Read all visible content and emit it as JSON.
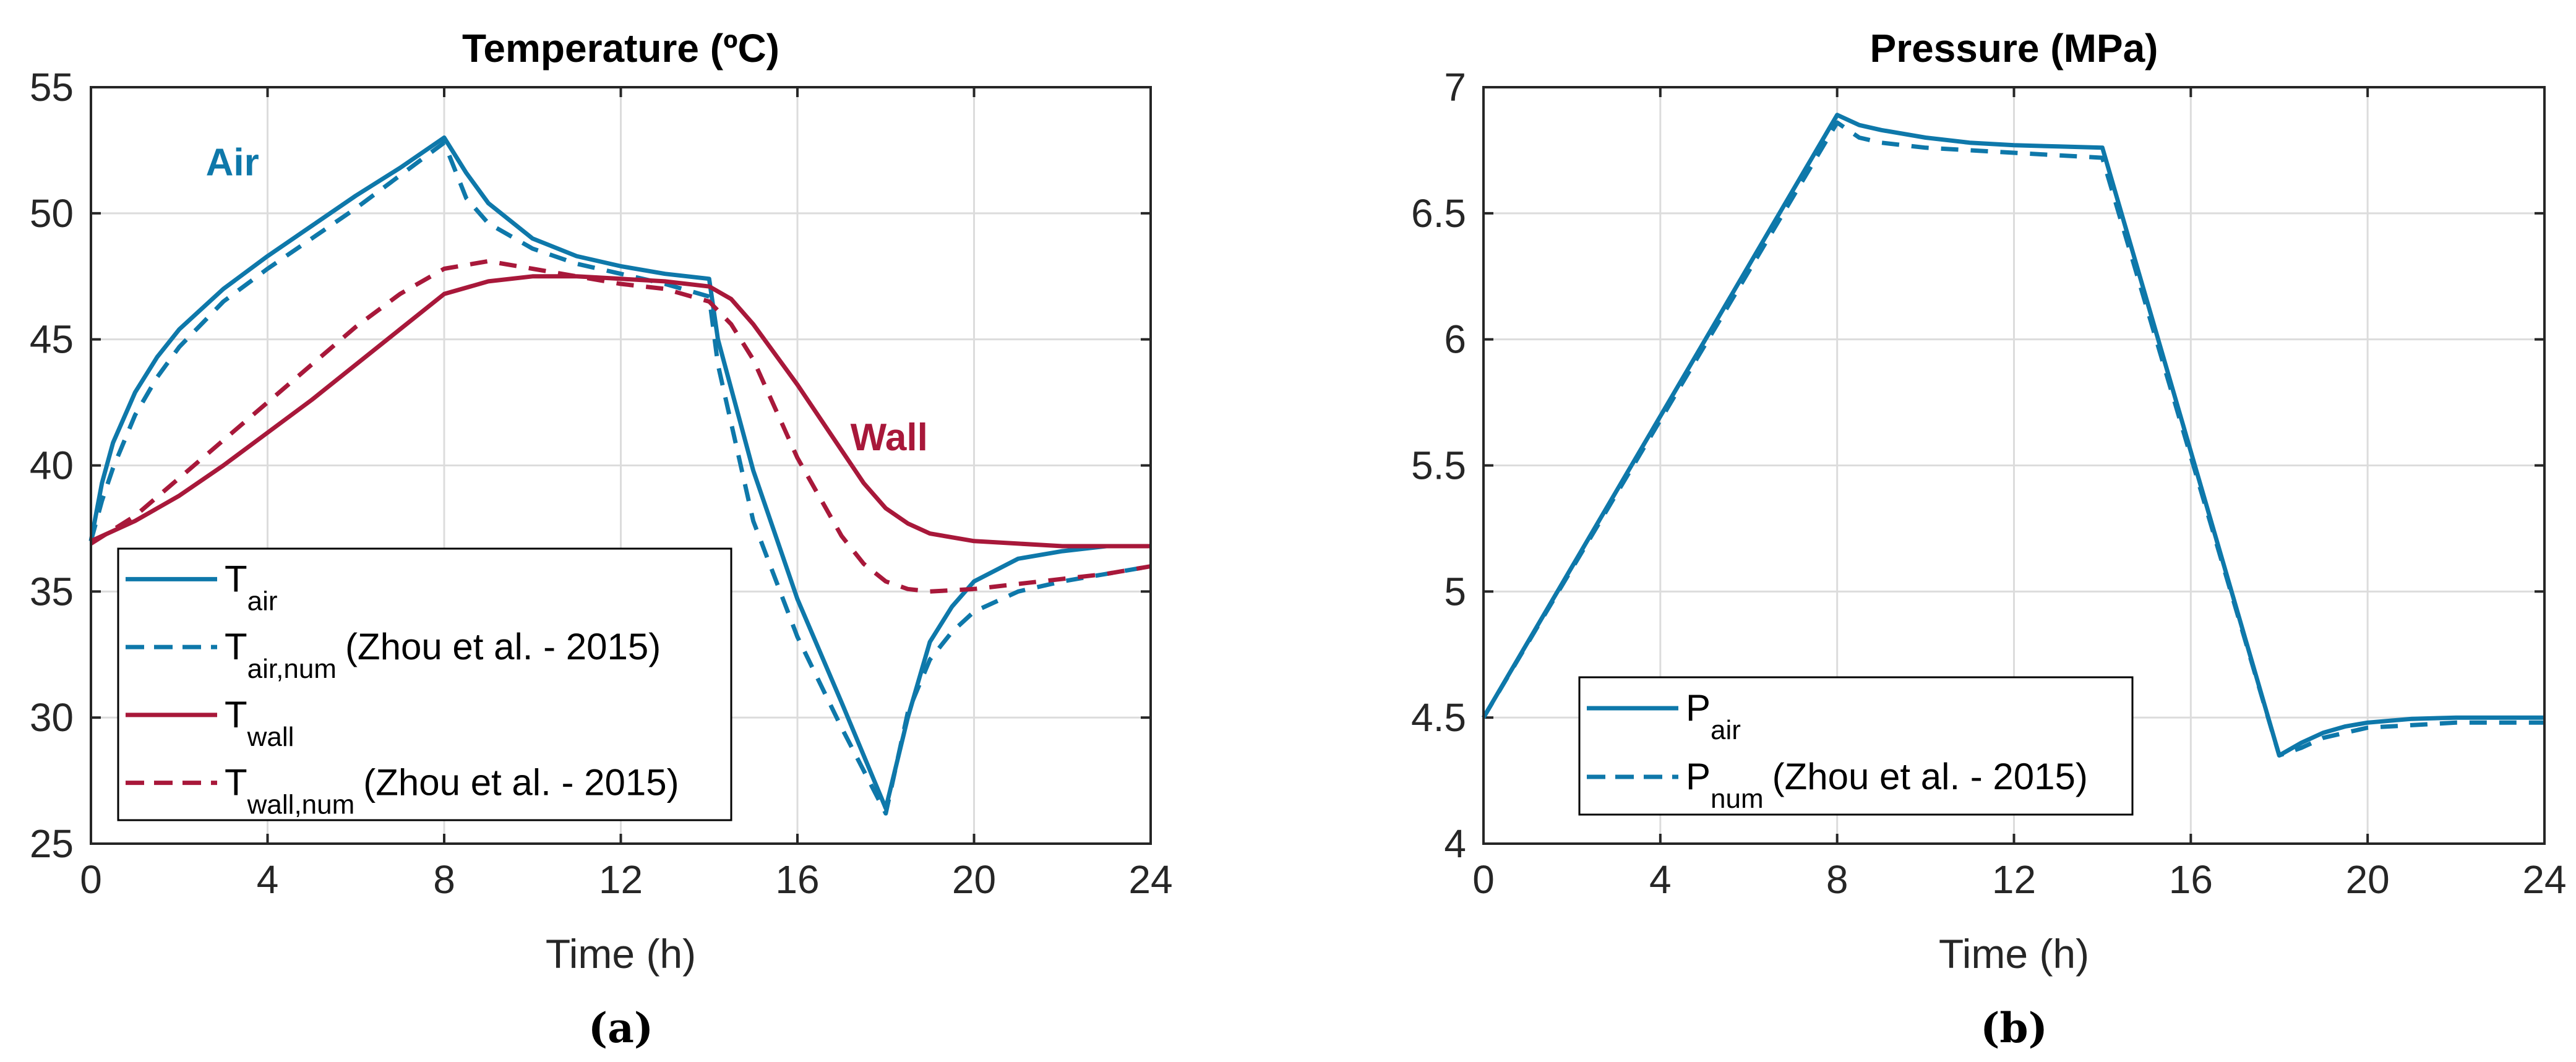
{
  "colors": {
    "air": "#0e78aa",
    "wall": "#a8183a",
    "grid": "#dcdcdc",
    "axis": "#262626"
  },
  "chart_data": [
    {
      "type": "line",
      "panel_label": "(a)",
      "title": "Temperature (ºC)",
      "xlabel": "Time (h)",
      "ylabel": "",
      "xlim": [
        0,
        24
      ],
      "ylim": [
        25,
        55
      ],
      "xticks": [
        0,
        4,
        8,
        12,
        16,
        20,
        24
      ],
      "yticks": [
        25,
        30,
        35,
        40,
        45,
        50,
        55
      ],
      "grid": true,
      "legend_position": "bottom-left",
      "annotations": [
        {
          "text": "Air",
          "color_key": "air",
          "x": 2.6,
          "y": 51.5
        },
        {
          "text": "Wall",
          "color_key": "wall",
          "x": 17.2,
          "y": 40.6
        }
      ],
      "series": [
        {
          "name": "T_air",
          "legend_main": "T",
          "legend_sub": "air",
          "legend_suffix": "",
          "color_key": "air",
          "dashed": false,
          "x": [
            0,
            0.25,
            0.5,
            1,
            1.5,
            2,
            3,
            4,
            5,
            6,
            7,
            8,
            8.5,
            9,
            10,
            11,
            12,
            13,
            14,
            14.2,
            15,
            16,
            17,
            18,
            18.5,
            19,
            19.5,
            20,
            21,
            22,
            23,
            24
          ],
          "y": [
            37,
            39.3,
            40.9,
            42.9,
            44.3,
            45.4,
            47,
            48.3,
            49.5,
            50.7,
            51.8,
            53,
            51.6,
            50.4,
            49,
            48.3,
            47.9,
            47.6,
            47.4,
            45,
            39.8,
            34.7,
            30.6,
            26.4,
            30,
            33,
            34.4,
            35.4,
            36.3,
            36.6,
            36.8,
            36.8
          ]
        },
        {
          "name": "T_air,num (Zhou et al. - 2015)",
          "legend_main": "T",
          "legend_sub": "air,num",
          "legend_suffix": "(Zhou et al. - 2015)",
          "color_key": "air",
          "dashed": true,
          "x": [
            0,
            0.25,
            0.5,
            1,
            1.5,
            2,
            3,
            4,
            5,
            6,
            7,
            8,
            8.5,
            9,
            10,
            11,
            12,
            13,
            14,
            14.2,
            15,
            16,
            17,
            18,
            18.5,
            19,
            19.5,
            20,
            21,
            22,
            23,
            24
          ],
          "y": [
            37,
            38.6,
            39.9,
            42,
            43.5,
            44.7,
            46.5,
            47.8,
            49,
            50.2,
            51.5,
            52.8,
            50.6,
            49.6,
            48.6,
            48,
            47.6,
            47.2,
            46.7,
            44,
            37.8,
            33.2,
            29.6,
            26.2,
            30.2,
            32.3,
            33.4,
            34.2,
            35,
            35.4,
            35.7,
            36
          ]
        },
        {
          "name": "T_wall",
          "legend_main": "T",
          "legend_sub": "wall",
          "legend_suffix": "",
          "color_key": "wall",
          "dashed": false,
          "x": [
            0,
            1,
            2,
            3,
            4,
            5,
            6,
            7,
            8,
            9,
            10,
            11,
            12,
            13,
            14,
            14.5,
            15,
            16,
            17,
            17.5,
            18,
            18.5,
            19,
            20,
            21,
            22,
            24
          ],
          "y": [
            37,
            37.8,
            38.8,
            40,
            41.3,
            42.6,
            44,
            45.4,
            46.8,
            47.3,
            47.5,
            47.5,
            47.4,
            47.3,
            47.1,
            46.6,
            45.6,
            43.2,
            40.6,
            39.3,
            38.3,
            37.7,
            37.3,
            37,
            36.9,
            36.8,
            36.8
          ]
        },
        {
          "name": "T_wall,num (Zhou et al. - 2015)",
          "legend_main": "T",
          "legend_sub": "wall,num",
          "legend_suffix": "(Zhou et al. - 2015)",
          "color_key": "wall",
          "dashed": true,
          "x": [
            0,
            1,
            2,
            3,
            4,
            5,
            6,
            7,
            8,
            9,
            10,
            11,
            12,
            13,
            14,
            14.5,
            15,
            16,
            17,
            17.5,
            18,
            18.5,
            19,
            20,
            21,
            22,
            23,
            24
          ],
          "y": [
            36.9,
            38,
            39.5,
            41,
            42.5,
            44,
            45.5,
            46.8,
            47.8,
            48.1,
            47.8,
            47.5,
            47.2,
            47,
            46.5,
            45.6,
            44.2,
            40.3,
            37.2,
            36.1,
            35.4,
            35.1,
            35,
            35.1,
            35.3,
            35.5,
            35.7,
            36
          ]
        }
      ]
    },
    {
      "type": "line",
      "panel_label": "(b)",
      "title": "Pressure (MPa)",
      "xlabel": "Time (h)",
      "ylabel": "",
      "xlim": [
        0,
        24
      ],
      "ylim": [
        4,
        7
      ],
      "xticks": [
        0,
        4,
        8,
        12,
        16,
        20,
        24
      ],
      "yticks": [
        4,
        4.5,
        5,
        5.5,
        6,
        6.5,
        7
      ],
      "grid": true,
      "legend_position": "bottom-left",
      "annotations": [],
      "series": [
        {
          "name": "P_air",
          "legend_main": "P",
          "legend_sub": "air",
          "legend_suffix": "",
          "color_key": "air",
          "dashed": false,
          "x": [
            0,
            8,
            8.5,
            9,
            10,
            11,
            12,
            13,
            14,
            18,
            18.5,
            19,
            19.5,
            20,
            21,
            22,
            24
          ],
          "y": [
            4.5,
            6.89,
            6.85,
            6.83,
            6.8,
            6.78,
            6.77,
            6.765,
            6.76,
            4.35,
            4.4,
            4.44,
            4.465,
            4.48,
            4.495,
            4.5,
            4.5
          ]
        },
        {
          "name": "P_num (Zhou et al. - 2015)",
          "legend_main": "P",
          "legend_sub": "num",
          "legend_suffix": "(Zhou et al. - 2015)",
          "color_key": "air",
          "dashed": true,
          "x": [
            0,
            8,
            8.5,
            9,
            10,
            11,
            12,
            13,
            14,
            18,
            18.5,
            19,
            19.5,
            20,
            21,
            22,
            24
          ],
          "y": [
            4.5,
            6.86,
            6.8,
            6.78,
            6.76,
            6.75,
            6.74,
            6.73,
            6.72,
            4.35,
            4.38,
            4.42,
            4.44,
            4.46,
            4.47,
            4.48,
            4.48
          ]
        }
      ]
    }
  ]
}
